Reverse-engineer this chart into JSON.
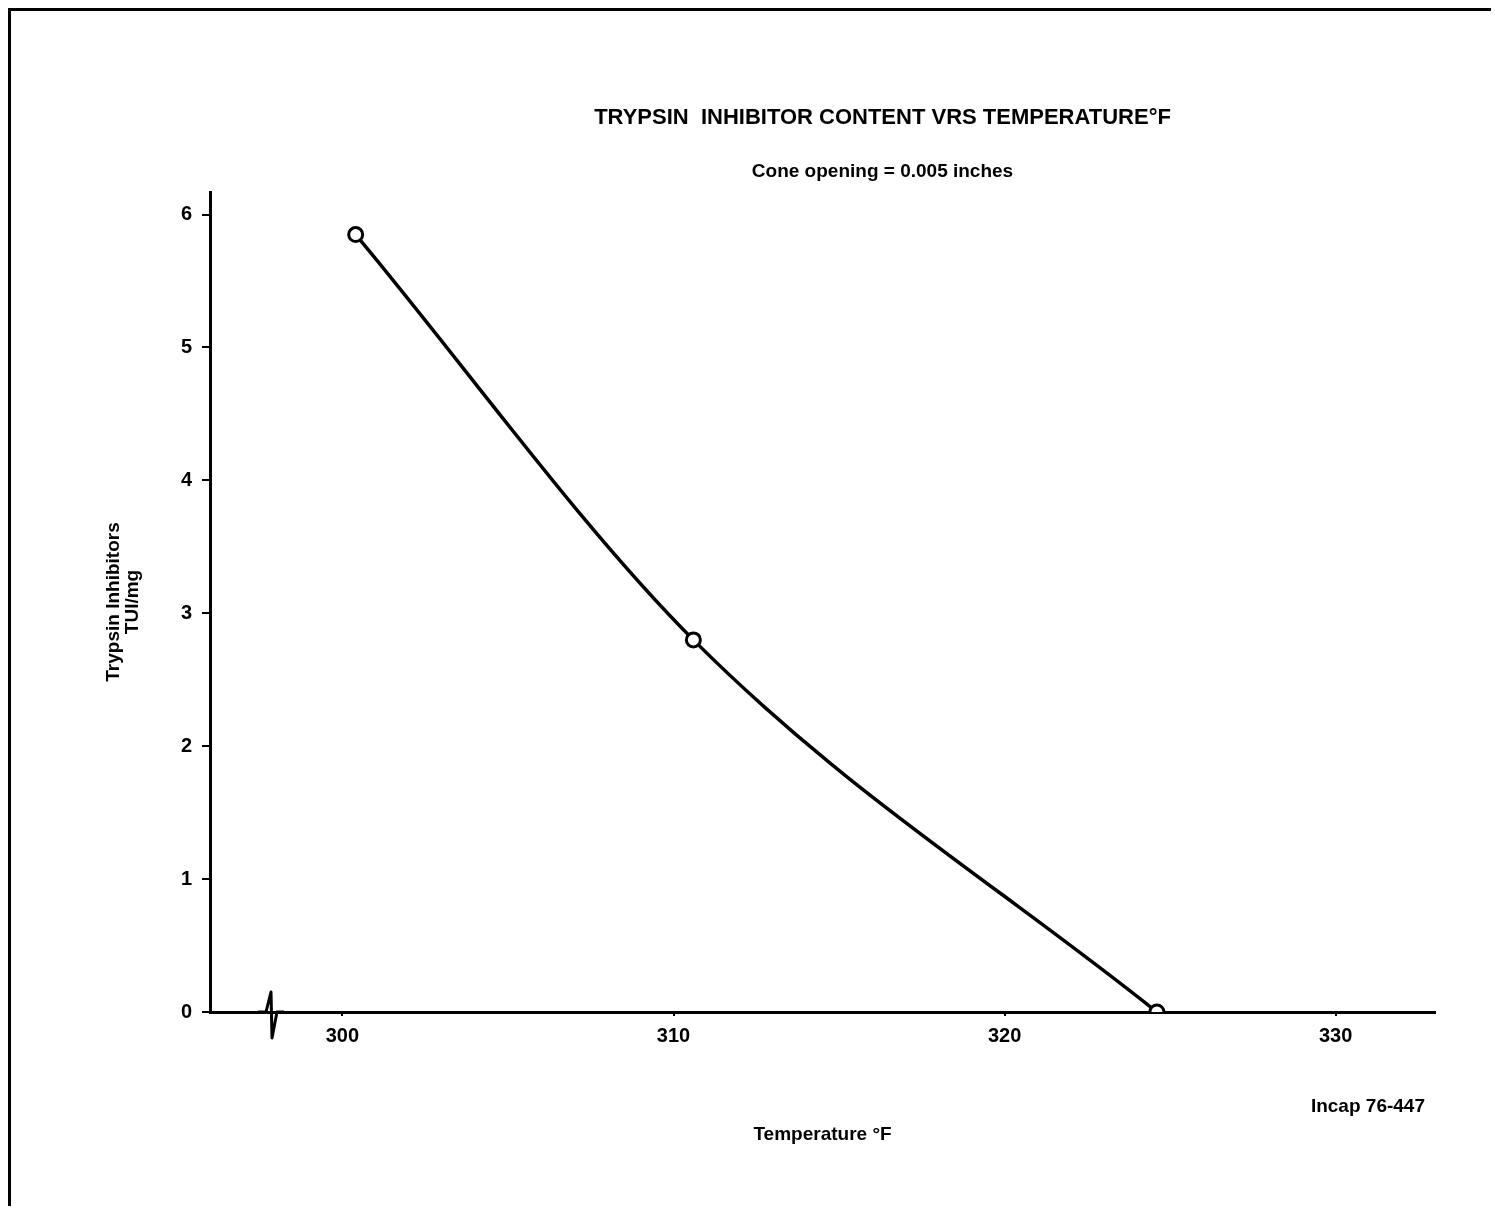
{
  "chart_data": {
    "type": "line",
    "title": "TRYPSIN  INHIBITOR CONTENT VRS TEMPERATURE°F",
    "subtitle": "Cone opening = 0.005 inches",
    "xlabel": "Temperature °F",
    "ylabel": "Trypsin Inhibitors\nTUI/mg",
    "annotations": [
      "Incap 76-447"
    ],
    "x": [
      300.4,
      310.6,
      324.6
    ],
    "series": [
      {
        "color": "#000000",
        "values": [
          5.85,
          2.8,
          0
        ]
      }
    ],
    "xlim": [
      296,
      333
    ],
    "xticks": [
      300,
      310,
      320,
      330
    ],
    "ylim": [
      0,
      6.17
    ],
    "yticks": [
      0,
      1,
      2,
      3,
      4,
      5,
      6
    ],
    "grid": false,
    "legend": false,
    "marker": "circle",
    "line_style": "solid"
  }
}
